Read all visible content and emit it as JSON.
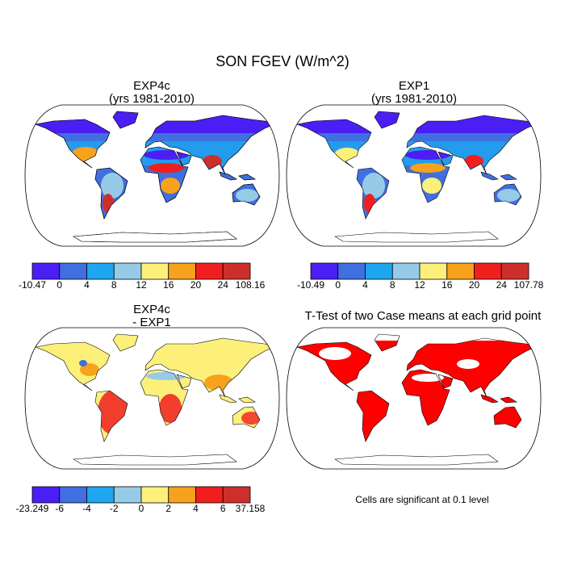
{
  "title": "SON FGEV (W/m^2)",
  "panels": [
    {
      "title": "EXP4c",
      "subtitle": "(yrs 1981-2010)",
      "colorbar": {
        "colors": [
          "#4b1ef5",
          "#3f6fe0",
          "#1ea7f0",
          "#96cbe8",
          "#fcf07a",
          "#f7a21c",
          "#f01f1e",
          "#cf2f2a"
        ],
        "ticks": [
          -10.47,
          0,
          4,
          8,
          12,
          16,
          20,
          24,
          108.16
        ]
      }
    },
    {
      "title": "EXP1",
      "subtitle": "(yrs 1981-2010)",
      "colorbar": {
        "colors": [
          "#4b1ef5",
          "#3f6fe0",
          "#1ea7f0",
          "#96cbe8",
          "#fcf07a",
          "#f7a21c",
          "#f01f1e",
          "#cf2f2a"
        ],
        "ticks": [
          -10.49,
          0,
          4,
          8,
          12,
          16,
          20,
          24,
          107.78
        ]
      }
    },
    {
      "title": "EXP4c",
      "subtitle": "- EXP1",
      "colorbar": {
        "colors": [
          "#4b1ef5",
          "#3f6fe0",
          "#1ea7f0",
          "#96cbe8",
          "#fcf07a",
          "#f7a21c",
          "#f01f1e",
          "#cf2f2a"
        ],
        "ticks": [
          -23.249,
          -6,
          -4,
          -2,
          0,
          2,
          4,
          6,
          37.158
        ]
      }
    },
    {
      "title": "T-Test of two Case means at each grid point",
      "note": "Cells are significant at 0.1 level"
    }
  ]
}
